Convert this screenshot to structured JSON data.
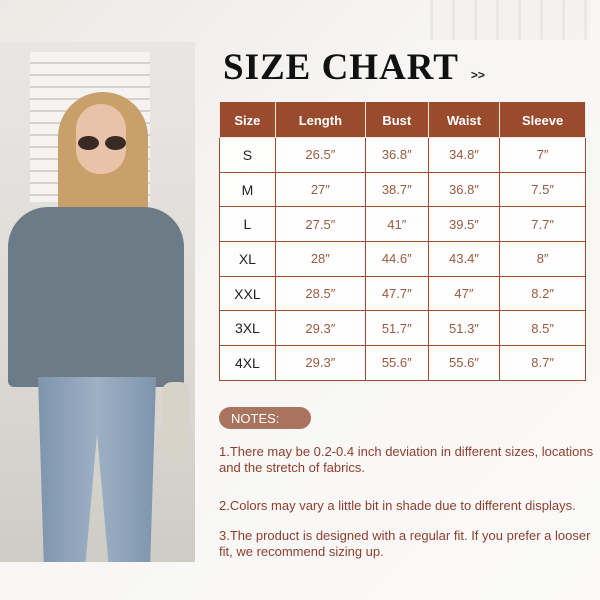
{
  "title": "SIZE CHART",
  "title_arrows": ">>",
  "colors": {
    "header": "#9a4b2d",
    "value_text": "#9b5a3f",
    "notes_pill": "#a9735e",
    "notes_text": "#8e3e2c"
  },
  "table": {
    "headers": [
      "Size",
      "Length",
      "Bust",
      "Waist",
      "Sleeve"
    ],
    "rows": [
      [
        "S",
        "26.5″",
        "36.8″",
        "34.8″",
        "7″"
      ],
      [
        "M",
        "27″",
        "38.7″",
        "36.8″",
        "7.5″"
      ],
      [
        "L",
        "27.5″",
        "41″",
        "39.5″",
        "7.7″"
      ],
      [
        "XL",
        "28″",
        "44.6″",
        "43.4″",
        "8″"
      ],
      [
        "XXL",
        "28.5″",
        "47.7″",
        "47″",
        "8.2″"
      ],
      [
        "3XL",
        "29.3″",
        "51.7″",
        "51.3″",
        "8.5″"
      ],
      [
        "4XL",
        "29.3″",
        "55.6″",
        "55.6″",
        "8.7″"
      ]
    ]
  },
  "notes": {
    "label": "NOTES:",
    "items": [
      "1.There may be 0.2-0.4 inch deviation in different sizes, locations and the stretch of fabrics.",
      "2.Colors may vary a little bit in shade due to different displays.",
      "3.The product is designed with a regular fit. If you prefer a looser fit, we recommend sizing up."
    ]
  }
}
